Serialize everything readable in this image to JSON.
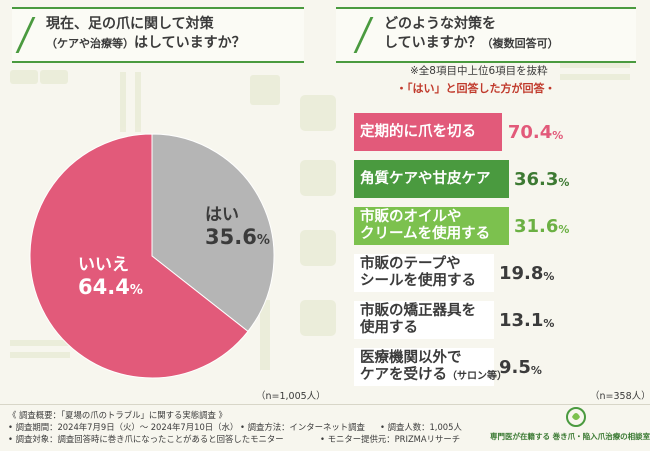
{
  "questions": {
    "left_line1": "現在、足の爪に関して対策",
    "left_line2_paren": "（ケアや治療等）",
    "left_line2_rest": "はしていますか？",
    "right_line1": "どのような対策を",
    "right_line2": "していますか？",
    "right_line2_sub": "（複数回答可）"
  },
  "notes": {
    "extract": "※全8項目中上位6項目を抜粋",
    "yes_only": "・「はい」と回答した方が回答・"
  },
  "counts": {
    "left": "（n=1,005人）",
    "right": "（n=358人）"
  },
  "colors": {
    "green": "#4a9a3f",
    "pink": "#e25a7a",
    "gray": "#b5b5b5",
    "light_green": "#7cc14e"
  },
  "chart_data": [
    {
      "type": "pie",
      "title": "現在、足の爪に関して対策（ケアや治療等）はしていますか？",
      "slices": [
        {
          "name": "はい",
          "value": 35.6,
          "value_text": "35.6",
          "unit": "%",
          "color": "#b5b5b5"
        },
        {
          "name": "いいえ",
          "value": 64.4,
          "value_text": "64.4",
          "unit": "%",
          "color": "#e25a7a"
        }
      ],
      "n": "n=1,005人"
    },
    {
      "type": "bar",
      "orientation": "horizontal",
      "title": "どのような対策をしていますか？（複数回答可）",
      "categories": [
        {
          "line1": "定期的に爪を切る",
          "line2": "",
          "line2_sub": ""
        },
        {
          "line1": "角質ケアや甘皮ケア",
          "line2": "",
          "line2_sub": ""
        },
        {
          "line1": "市販のオイルや",
          "line2": "クリームを使用する",
          "line2_sub": ""
        },
        {
          "line1": "市販のテープや",
          "line2": "シールを使用する",
          "line2_sub": ""
        },
        {
          "line1": "市販の矯正器具を",
          "line2": "使用する",
          "line2_sub": ""
        },
        {
          "line1": "医療機関以外で",
          "line2": "ケアを受ける",
          "line2_sub": "（サロン等）"
        }
      ],
      "values": [
        70.4,
        36.3,
        31.6,
        19.8,
        13.1,
        9.5
      ],
      "value_texts": [
        "70.4",
        "36.3",
        "31.6",
        "19.8",
        "13.1",
        "9.5"
      ],
      "unit": "%",
      "bar_colors": [
        "#e25a7a",
        "#4a9a3f",
        "#7cc14e",
        "#ffffff",
        "#ffffff",
        "#ffffff"
      ],
      "label_colors": [
        "#ffffff",
        "#ffffff",
        "#ffffff",
        "#3b3b3b",
        "#3b3b3b",
        "#3b3b3b"
      ],
      "value_colors": [
        "#e25a7a",
        "#3d7a33",
        "#6bb043",
        "#3b3b3b",
        "#3b3b3b",
        "#3b3b3b"
      ],
      "xlim": [
        0,
        100
      ],
      "n": "n=358人"
    }
  ],
  "footer": {
    "title": "《 調査概要：「夏場の爪のトラブル」に関する実態調査 》",
    "period": "• 調査期間：2024年7月9日（火）～ 2024年7月10日（水）",
    "method": "• 調査方法：インターネット調査",
    "people": "• 調査人数：1,005人",
    "target": "• 調査対象：調査回答時に巻き爪になったことがあると回答したモニター",
    "provider": "• モニター提供元：PRIZMAリサーチ"
  },
  "logo": {
    "text": "専門医が在籍する 巻き爪・陥入爪治療の相談室"
  }
}
